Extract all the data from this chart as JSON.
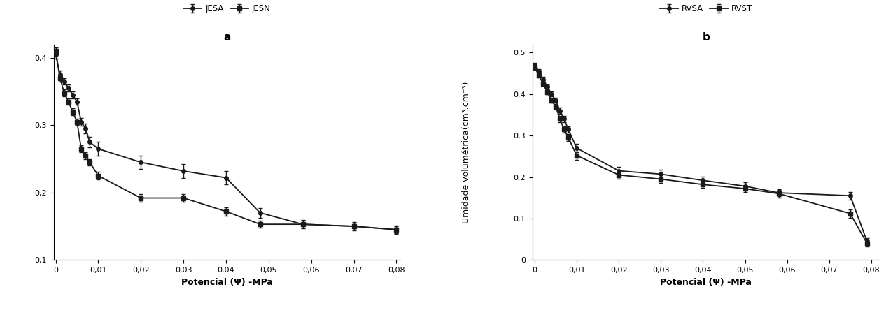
{
  "panel_a": {
    "title": "a",
    "xlabel": "Potencial (Ψ) -MPa",
    "ylim": [
      0.1,
      0.42
    ],
    "yticks": [
      0.1,
      0.2,
      0.3,
      0.4
    ],
    "xlim": [
      -0.0005,
      0.081
    ],
    "xticks": [
      0,
      0.01,
      0.02,
      0.03,
      0.04,
      0.05,
      0.06,
      0.07,
      0.08
    ],
    "series": {
      "JESA": {
        "x": [
          0.0,
          0.001,
          0.002,
          0.003,
          0.004,
          0.005,
          0.006,
          0.007,
          0.008,
          0.01,
          0.02,
          0.03,
          0.04,
          0.048,
          0.058,
          0.07,
          0.08
        ],
        "y": [
          0.405,
          0.375,
          0.365,
          0.355,
          0.345,
          0.335,
          0.305,
          0.295,
          0.275,
          0.265,
          0.245,
          0.232,
          0.222,
          0.17,
          0.153,
          0.15,
          0.145
        ],
        "yerr": [
          0.006,
          0.006,
          0.005,
          0.005,
          0.005,
          0.005,
          0.006,
          0.007,
          0.008,
          0.01,
          0.01,
          0.01,
          0.01,
          0.007,
          0.006,
          0.006,
          0.006
        ],
        "marker": "o"
      },
      "JESN": {
        "x": [
          0.0,
          0.001,
          0.002,
          0.003,
          0.004,
          0.005,
          0.006,
          0.007,
          0.008,
          0.01,
          0.02,
          0.03,
          0.04,
          0.048,
          0.058,
          0.07,
          0.08
        ],
        "y": [
          0.41,
          0.37,
          0.348,
          0.335,
          0.32,
          0.305,
          0.265,
          0.255,
          0.245,
          0.225,
          0.192,
          0.192,
          0.172,
          0.153,
          0.153,
          0.15,
          0.145
        ],
        "yerr": [
          0.005,
          0.005,
          0.005,
          0.005,
          0.005,
          0.005,
          0.005,
          0.005,
          0.005,
          0.006,
          0.006,
          0.006,
          0.006,
          0.005,
          0.005,
          0.005,
          0.005
        ],
        "marker": "s"
      }
    },
    "legend_labels": [
      "JESA",
      "JESN"
    ]
  },
  "panel_b": {
    "title": "b",
    "xlabel": "Potencial (Ψ) -MPa",
    "ylim": [
      0.0,
      0.52
    ],
    "yticks": [
      0.0,
      0.1,
      0.2,
      0.3,
      0.4,
      0.5
    ],
    "xlim": [
      -0.0005,
      0.082
    ],
    "xticks": [
      0,
      0.01,
      0.02,
      0.03,
      0.04,
      0.05,
      0.06,
      0.07,
      0.08
    ],
    "series": {
      "RVSA": {
        "x": [
          0.0,
          0.001,
          0.002,
          0.003,
          0.004,
          0.005,
          0.006,
          0.007,
          0.008,
          0.01,
          0.02,
          0.03,
          0.04,
          0.05,
          0.058,
          0.075,
          0.079
        ],
        "y": [
          0.47,
          0.455,
          0.435,
          0.418,
          0.4,
          0.385,
          0.36,
          0.34,
          0.315,
          0.27,
          0.215,
          0.207,
          0.192,
          0.178,
          0.162,
          0.155,
          0.045
        ],
        "yerr": [
          0.006,
          0.006,
          0.006,
          0.006,
          0.006,
          0.006,
          0.008,
          0.008,
          0.008,
          0.01,
          0.01,
          0.01,
          0.009,
          0.009,
          0.009,
          0.009,
          0.007
        ],
        "marker": "o"
      },
      "RVST": {
        "x": [
          0.0,
          0.001,
          0.002,
          0.003,
          0.004,
          0.005,
          0.006,
          0.007,
          0.008,
          0.01,
          0.02,
          0.03,
          0.04,
          0.05,
          0.058,
          0.075,
          0.079
        ],
        "y": [
          0.465,
          0.445,
          0.425,
          0.405,
          0.385,
          0.37,
          0.34,
          0.315,
          0.295,
          0.252,
          0.205,
          0.195,
          0.182,
          0.172,
          0.16,
          0.112,
          0.04
        ],
        "yerr": [
          0.006,
          0.005,
          0.005,
          0.005,
          0.005,
          0.006,
          0.008,
          0.008,
          0.008,
          0.01,
          0.009,
          0.009,
          0.008,
          0.008,
          0.009,
          0.01,
          0.007
        ],
        "marker": "s"
      }
    },
    "legend_labels": [
      "RVSA",
      "RVST"
    ]
  },
  "shared_ylabel": "Umidade volumétrica(cm³.cm⁻³)",
  "line_color": "#1a1a1a",
  "marker_size": 4,
  "linewidth": 1.3,
  "capsize": 2.5,
  "elinewidth": 1.0,
  "title_fontsize": 11,
  "label_fontsize": 9,
  "tick_fontsize": 8,
  "legend_fontsize": 8.5
}
